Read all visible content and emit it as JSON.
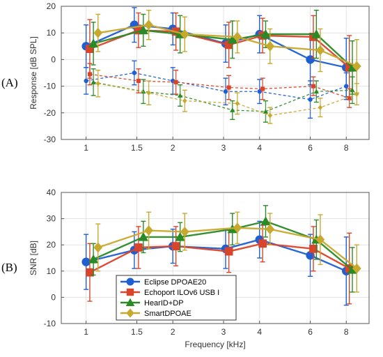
{
  "chart_data": [
    {
      "type": "line",
      "panel_label": "(A)",
      "ylabel": "Response [dB SPL]",
      "xlabel": "",
      "x_scale": "log",
      "x_ticks": [
        1,
        1.5,
        2,
        3,
        4,
        6,
        8
      ],
      "x_tick_labels": [
        "1",
        "1.5",
        "2",
        "3",
        "4",
        "6",
        "8"
      ],
      "ylim": [
        -30,
        20
      ],
      "y_ticks": [
        -30,
        -20,
        -10,
        0,
        10,
        20
      ],
      "y_tick_labels": [
        "-30",
        "-20",
        "-10",
        "0",
        "10",
        "20"
      ],
      "grid": true,
      "series": [
        {
          "name": "Eclipse DPOAE20",
          "color": "#1f5fd1",
          "marker": "circle",
          "dashed": false,
          "x": [
            1.0,
            1.47,
            2.0,
            3.05,
            4.0,
            6.0,
            8.0
          ],
          "y": [
            5,
            13,
            11.5,
            6,
            9.5,
            0,
            -3
          ],
          "err": [
            8,
            6.5,
            6,
            7,
            7,
            9.5,
            11
          ]
        },
        {
          "name": "Echoport ILOv6 USB I",
          "color": "#d9452b",
          "marker": "square",
          "dashed": false,
          "x": [
            1.03,
            1.52,
            2.05,
            3.13,
            4.1,
            6.15,
            8.2
          ],
          "y": [
            4,
            11,
            10.5,
            5.5,
            9,
            8.5,
            -3
          ],
          "err": [
            11,
            6.5,
            7,
            8.5,
            6.5,
            8,
            12
          ]
        },
        {
          "name": "HearID+DP",
          "color": "#2a8a26",
          "marker": "triangle",
          "dashed": false,
          "x": [
            1.06,
            1.58,
            2.12,
            3.22,
            4.2,
            6.3,
            8.4
          ],
          "y": [
            6,
            11,
            9.5,
            7.5,
            9.5,
            9.5,
            -3
          ],
          "err": [
            8,
            6,
            7,
            7,
            5,
            9,
            10
          ]
        },
        {
          "name": "SmartDPOAE",
          "color": "#c7a92e",
          "marker": "diamond",
          "dashed": false,
          "x": [
            1.1,
            1.65,
            2.2,
            3.35,
            4.35,
            6.5,
            8.7
          ],
          "y": [
            10,
            13,
            9.5,
            8.5,
            5,
            3.5,
            -2.5
          ],
          "err": [
            7,
            5.5,
            6.5,
            6,
            6.5,
            8,
            10
          ]
        },
        {
          "name": "",
          "color": "#1f5fd1",
          "marker": "circle",
          "dashed": true,
          "x": [
            1.0,
            1.47,
            2.0,
            3.05,
            4.0,
            6.0,
            8.0
          ],
          "y": [
            -8,
            -5,
            -8,
            -12,
            -12,
            -15,
            -10
          ],
          "err": [
            5,
            4.5,
            5,
            5,
            4.5,
            7,
            5
          ]
        },
        {
          "name": "",
          "color": "#d9452b",
          "marker": "square",
          "dashed": true,
          "x": [
            1.03,
            1.52,
            2.05,
            3.13,
            4.1,
            6.15,
            8.2
          ],
          "y": [
            -5.5,
            -8,
            -8.5,
            -10.5,
            -11,
            -10,
            -14.5
          ],
          "err": [
            4,
            4.5,
            4.5,
            4.5,
            4,
            3.5,
            3.5
          ]
        },
        {
          "name": "",
          "color": "#2a8a26",
          "marker": "triangle",
          "dashed": true,
          "x": [
            1.06,
            1.58,
            2.12,
            3.22,
            4.2,
            6.3,
            8.4
          ],
          "y": [
            -8.5,
            -12,
            -13.5,
            -19,
            -19.5,
            -12,
            -11.5
          ],
          "err": [
            5,
            4.5,
            4,
            3.5,
            4,
            4,
            5
          ]
        },
        {
          "name": "",
          "color": "#c7a92e",
          "marker": "diamond",
          "dashed": true,
          "x": [
            1.1,
            1.65,
            2.2,
            3.35,
            4.35,
            6.5,
            8.7
          ],
          "y": [
            -9,
            -12.5,
            -15.5,
            -16.5,
            -21,
            -18,
            -13
          ],
          "err": [
            5,
            4.5,
            4,
            4,
            3,
            3.5,
            4
          ]
        }
      ]
    },
    {
      "type": "line",
      "panel_label": "(B)",
      "ylabel": "SNR [dB]",
      "xlabel": "Frequency [kHz]",
      "x_scale": "log",
      "x_ticks": [
        1,
        1.5,
        2,
        3,
        4,
        6,
        8
      ],
      "x_tick_labels": [
        "1",
        "1.5",
        "2",
        "3",
        "4",
        "6",
        "8"
      ],
      "ylim": [
        -10,
        40
      ],
      "y_ticks": [
        -10,
        0,
        10,
        20,
        30,
        40
      ],
      "y_tick_labels": [
        "-10",
        "0",
        "10",
        "20",
        "30",
        "40"
      ],
      "grid": true,
      "legend_position": "bottom-center",
      "series": [
        {
          "name": "Eclipse DPOAE20",
          "color": "#1f5fd1",
          "marker": "circle",
          "dashed": false,
          "x": [
            1.0,
            1.47,
            2.0,
            3.05,
            4.0,
            6.0,
            8.0
          ],
          "y": [
            13.5,
            18,
            19.5,
            18.5,
            22,
            16,
            10
          ],
          "err": [
            10.5,
            7,
            6.5,
            7.5,
            7,
            8,
            13
          ]
        },
        {
          "name": "Echoport ILOv6 USB I",
          "color": "#d9452b",
          "marker": "square",
          "dashed": false,
          "x": [
            1.03,
            1.52,
            2.05,
            3.13,
            4.1,
            6.15,
            8.2
          ],
          "y": [
            9.5,
            19,
            19.5,
            17.5,
            20.5,
            18.5,
            11
          ],
          "err": [
            11,
            8,
            7.5,
            8,
            7,
            8.5,
            13.5
          ]
        },
        {
          "name": "HearID+DP",
          "color": "#2a8a26",
          "marker": "triangle",
          "dashed": false,
          "x": [
            1.06,
            1.58,
            2.12,
            3.22,
            4.2,
            6.3,
            8.4
          ],
          "y": [
            14.5,
            23,
            23,
            26,
            29,
            22,
            10.5
          ],
          "err": [
            6,
            6,
            5.5,
            6,
            6,
            7.5,
            8.5
          ]
        },
        {
          "name": "SmartDPOAE",
          "color": "#c7a92e",
          "marker": "diamond",
          "dashed": false,
          "x": [
            1.1,
            1.65,
            2.2,
            3.35,
            4.35,
            6.5,
            8.7
          ],
          "y": [
            19,
            25.5,
            25,
            26.5,
            26,
            22,
            11
          ],
          "err": [
            9,
            7,
            7,
            6,
            6,
            9.5,
            9
          ]
        }
      ]
    }
  ]
}
